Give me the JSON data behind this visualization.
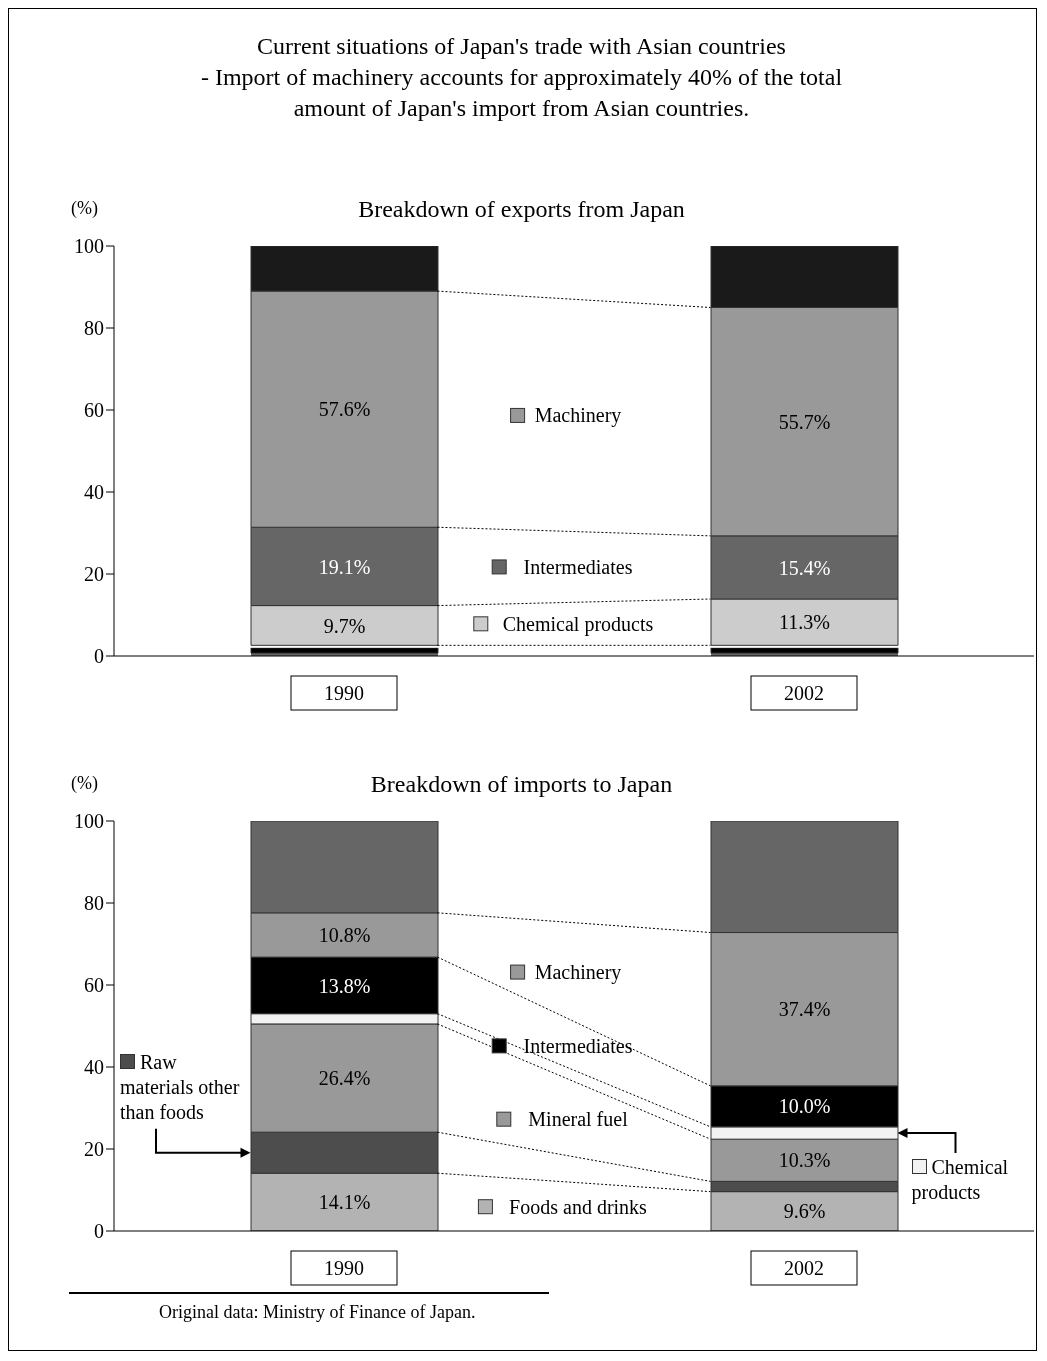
{
  "chart_data": [
    {
      "type": "bar",
      "legend": "center",
      "title": "Breakdown of exports from Japan",
      "annotations": [
        "Current situations of Japan's trade with Asian countries",
        "- Import of machinery accounts for approximately 40% of the total amount of Japan's import from Asian countries."
      ],
      "ylabel": "(%)",
      "categories": [
        "1990",
        "2002"
      ],
      "stacked": true,
      "ylim": [
        0,
        100
      ],
      "yticks": [
        0,
        20,
        40,
        60,
        80,
        100
      ],
      "series": [
        {
          "color": "#666666",
          "values": [
            0.7,
            0.7
          ]
        },
        {
          "color": "#000000",
          "values": [
            1.3,
            1.3
          ]
        },
        {
          "color": "#ffffff",
          "values": [
            0.6,
            0.6
          ]
        },
        {
          "name": "Chemical products",
          "color": "#cccccc",
          "values": [
            9.7,
            11.3
          ],
          "value_labels": [
            "9.7%",
            "11.3%"
          ]
        },
        {
          "name": "Intermediates",
          "color": "#666666",
          "values": [
            19.1,
            15.4
          ],
          "value_labels": [
            "19.1%",
            "15.4%"
          ]
        },
        {
          "name": "Machinery",
          "color": "#999999",
          "values": [
            57.6,
            55.7
          ],
          "value_labels": [
            "57.6%",
            "55.7%"
          ]
        },
        {
          "color": "#1a1a1a",
          "values": [
            11.0,
            15.0
          ]
        }
      ]
    },
    {
      "type": "bar",
      "legend": "center",
      "title": "Breakdown of imports to Japan",
      "annotations": [
        "Original data: Ministry of Finance of Japan."
      ],
      "ylabel": "(%)",
      "categories": [
        "1990",
        "2002"
      ],
      "stacked": true,
      "ylim": [
        0,
        100
      ],
      "yticks": [
        0,
        20,
        40,
        60,
        80,
        100
      ],
      "series": [
        {
          "name": "Foods and drinks",
          "color": "#b3b3b3",
          "values": [
            14.1,
            9.6
          ],
          "value_labels": [
            "14.1%",
            "9.6%"
          ]
        },
        {
          "name": "Raw materials other than foods",
          "color": "#4d4d4d",
          "values": [
            10.0,
            2.5
          ]
        },
        {
          "name": "Mineral fuel",
          "color": "#999999",
          "values": [
            26.4,
            10.3
          ],
          "value_labels": [
            "26.4%",
            "10.3%"
          ]
        },
        {
          "name": "Chemical products",
          "color": "#f2f2f2",
          "values": [
            2.5,
            3.0
          ]
        },
        {
          "name": "Intermediates",
          "color": "#000000",
          "values": [
            13.8,
            10.0
          ],
          "value_labels": [
            "13.8%",
            "10.0%"
          ]
        },
        {
          "name": "Machinery",
          "color": "#999999",
          "values": [
            10.8,
            37.4
          ],
          "value_labels": [
            "10.8%",
            "37.4%"
          ]
        },
        {
          "color": "#666666",
          "values": [
            22.4,
            27.2
          ]
        }
      ]
    }
  ]
}
